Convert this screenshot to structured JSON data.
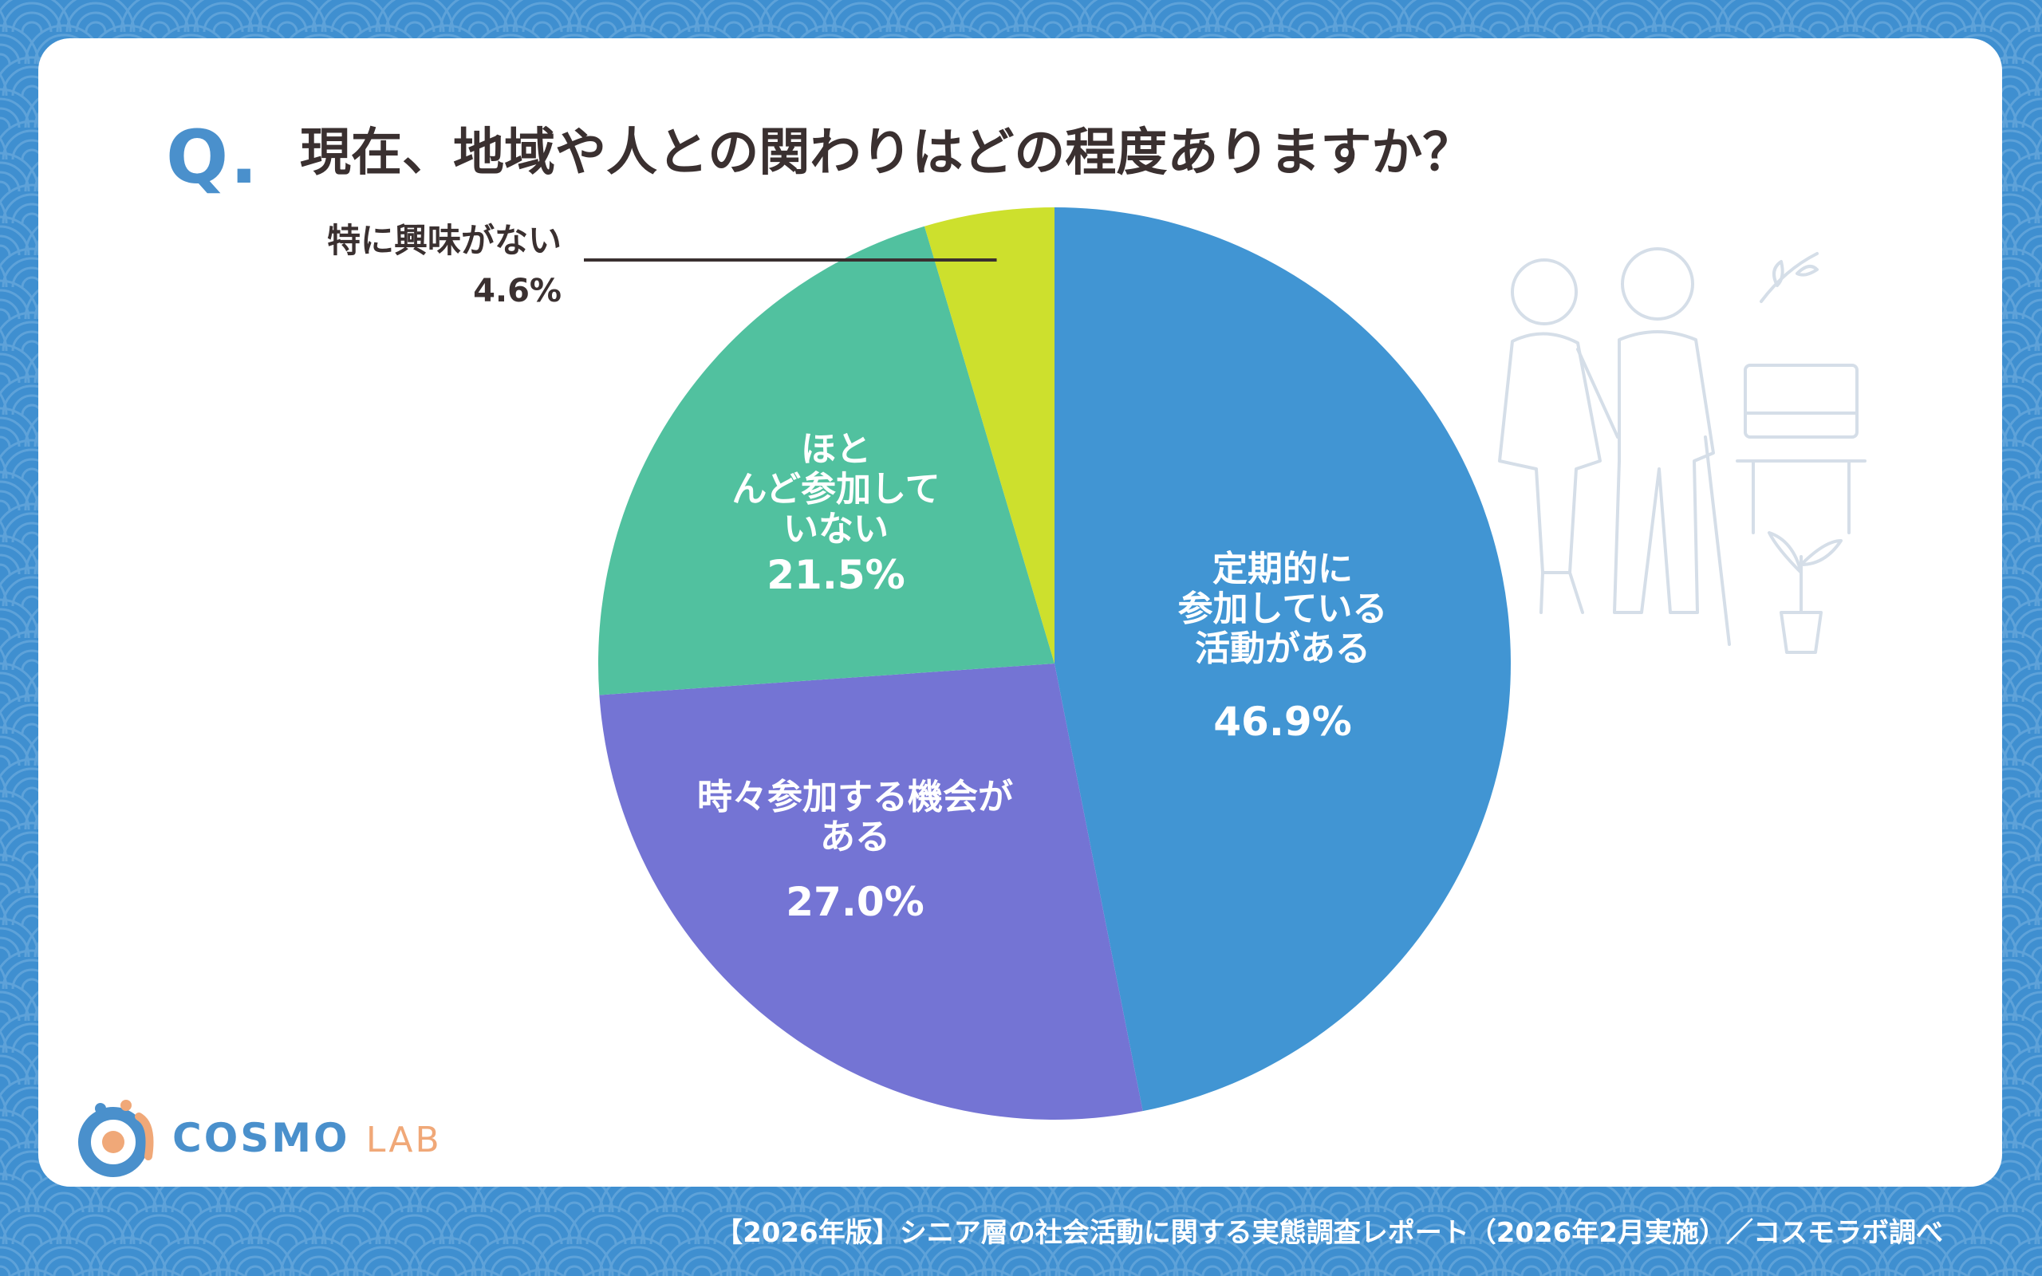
{
  "header": {
    "q_mark": "Q.",
    "question": "現在、地域や人との関わりはどの程度ありますか？"
  },
  "chart_data": {
    "type": "pie",
    "start": "12 o'clock",
    "direction": "clockwise",
    "slices": [
      {
        "label_lines": [
          "定期的に",
          "参加している",
          "活動がある"
        ],
        "value": 46.9,
        "value_label": "46.9%",
        "color": "#4195d3",
        "label_color": "#ffffff"
      },
      {
        "label_lines": [
          "時々参加する機会が",
          "ある"
        ],
        "value": 27.0,
        "value_label": "27.0%",
        "color": "#7474d4",
        "label_color": "#ffffff"
      },
      {
        "label_lines": [
          "ほと",
          "んど参加して",
          "いない"
        ],
        "value": 21.5,
        "value_label": "21.5%",
        "color": "#51c19f",
        "label_color": "#ffffff"
      },
      {
        "label_lines": [
          "特に興味がない"
        ],
        "value": 4.6,
        "value_label": "4.6%",
        "color": "#cde02d",
        "label_color": "#3a3030",
        "external_label": true
      }
    ]
  },
  "logo": {
    "brand": "COSMO",
    "brand_suffix": "LAB"
  },
  "footer": {
    "source": "【2026年版】シニア層の社会活動に関する実態調査レポート（2026年2月実施）／コスモラボ調べ"
  },
  "colors": {
    "background": "#3f8fd0",
    "card": "#ffffff",
    "accent": "#4a90cc",
    "text": "#3a3030"
  }
}
